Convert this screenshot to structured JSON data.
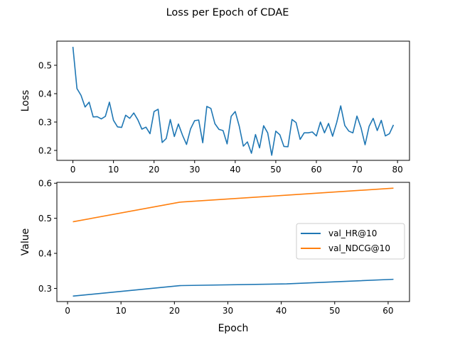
{
  "title": "Loss per Epoch of CDAE",
  "colors": {
    "loss": "#1f77b4",
    "hr": "#1f77b4",
    "ndcg": "#ff7f0e"
  },
  "chart_data": [
    {
      "type": "line",
      "ylabel": "Loss",
      "xlabel": "",
      "xlim": [
        -3.95,
        82.95
      ],
      "ylim": [
        0.165,
        0.585
      ],
      "xticks": [
        0,
        10,
        20,
        30,
        40,
        50,
        60,
        70,
        80
      ],
      "yticks": [
        0.2,
        0.3,
        0.4,
        0.5
      ],
      "ytick_labels": [
        "0.2",
        "0.3",
        "0.4",
        "0.5"
      ],
      "grid": false,
      "series": [
        {
          "x": [
            0,
            1,
            2,
            3,
            4,
            5,
            6,
            7,
            8,
            9,
            10,
            11,
            12,
            13,
            14,
            15,
            16,
            17,
            18,
            19,
            20,
            21,
            22,
            23,
            24,
            25,
            26,
            27,
            28,
            29,
            30,
            31,
            32,
            33,
            34,
            35,
            36,
            37,
            38,
            39,
            40,
            41,
            42,
            43,
            44,
            45,
            46,
            47,
            48,
            49,
            50,
            51,
            52,
            53,
            54,
            55,
            56,
            57,
            58,
            59,
            60,
            61,
            62,
            63,
            64,
            65,
            66,
            67,
            68,
            69,
            70,
            71,
            72,
            73,
            74,
            75,
            76,
            77,
            78,
            79
          ],
          "values": [
            0.565,
            0.418,
            0.394,
            0.353,
            0.37,
            0.318,
            0.319,
            0.311,
            0.32,
            0.37,
            0.306,
            0.283,
            0.281,
            0.324,
            0.313,
            0.332,
            0.308,
            0.275,
            0.282,
            0.259,
            0.337,
            0.345,
            0.228,
            0.242,
            0.309,
            0.249,
            0.293,
            0.254,
            0.221,
            0.276,
            0.305,
            0.307,
            0.227,
            0.355,
            0.348,
            0.294,
            0.274,
            0.27,
            0.223,
            0.32,
            0.337,
            0.285,
            0.215,
            0.23,
            0.19,
            0.256,
            0.209,
            0.287,
            0.262,
            0.183,
            0.268,
            0.255,
            0.214,
            0.213,
            0.309,
            0.298,
            0.239,
            0.262,
            0.262,
            0.265,
            0.251,
            0.3,
            0.262,
            0.295,
            0.25,
            0.298,
            0.357,
            0.288,
            0.268,
            0.262,
            0.321,
            0.28,
            0.22,
            0.285,
            0.313,
            0.27,
            0.306,
            0.251,
            0.259,
            0.29
          ]
        }
      ]
    },
    {
      "type": "line",
      "xlabel": "Epoch",
      "ylabel": "Value",
      "xlim": [
        -2.0,
        64.0
      ],
      "ylim": [
        0.2625,
        0.6025
      ],
      "xticks": [
        0,
        10,
        20,
        30,
        40,
        50,
        60
      ],
      "yticks": [
        0.3,
        0.4,
        0.5,
        0.6
      ],
      "ytick_labels": [
        "0.3",
        "0.4",
        "0.5",
        "0.6"
      ],
      "grid": false,
      "legend": "center-right",
      "series": [
        {
          "name": "val_HR@10",
          "x": [
            1,
            21,
            41,
            61
          ],
          "values": [
            0.278,
            0.308,
            0.313,
            0.326
          ]
        },
        {
          "name": "val_NDCG@10",
          "x": [
            1,
            21,
            41,
            61
          ],
          "values": [
            0.49,
            0.546,
            0.566,
            0.586
          ]
        }
      ]
    }
  ]
}
